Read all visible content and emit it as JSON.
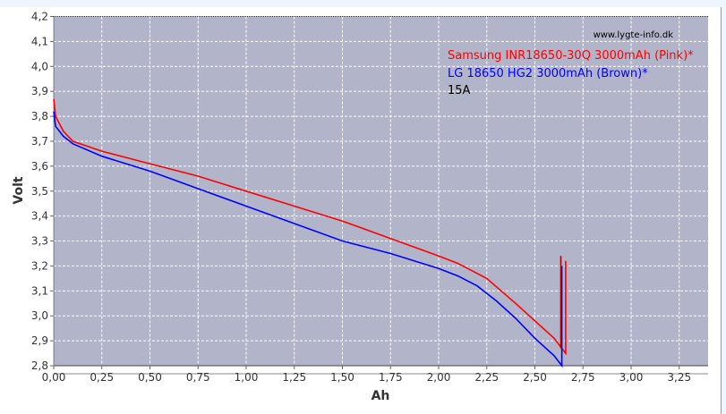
{
  "chart_data": {
    "type": "line",
    "title": "",
    "xlabel": "Ah",
    "ylabel": "Volt",
    "xlim": [
      0,
      3.4
    ],
    "ylim": [
      2.8,
      4.2
    ],
    "grid": true,
    "background": "#b2b4c9",
    "xticks": [
      "0,00",
      "0,25",
      "0,50",
      "0,75",
      "1,00",
      "1,25",
      "1,50",
      "1,75",
      "2,00",
      "2,25",
      "2,50",
      "2,75",
      "3,00",
      "3,25"
    ],
    "yticks": [
      "2,8",
      "2,9",
      "3,0",
      "3,1",
      "3,2",
      "3,3",
      "3,4",
      "3,5",
      "3,6",
      "3,7",
      "3,8",
      "3,9",
      "4,0",
      "4,1",
      "4,2"
    ],
    "watermark": "www.lygte-info.dk",
    "annotation": "15A",
    "legend_placement": "top-right",
    "series": [
      {
        "name": "Samsung INR18650-30Q 3000mAh (Pink)*",
        "color": "#ff0000",
        "points": [
          [
            0,
            3.87
          ],
          [
            0.01,
            3.8
          ],
          [
            0.05,
            3.74
          ],
          [
            0.1,
            3.7
          ],
          [
            0.25,
            3.66
          ],
          [
            0.5,
            3.61
          ],
          [
            0.75,
            3.56
          ],
          [
            1.0,
            3.5
          ],
          [
            1.25,
            3.44
          ],
          [
            1.5,
            3.38
          ],
          [
            1.75,
            3.31
          ],
          [
            2.0,
            3.24
          ],
          [
            2.1,
            3.21
          ],
          [
            2.25,
            3.15
          ],
          [
            2.4,
            3.05
          ],
          [
            2.5,
            2.98
          ],
          [
            2.6,
            2.91
          ],
          [
            2.66,
            2.85
          ],
          [
            2.66,
            3.22
          ]
        ]
      },
      {
        "name": "LG 18650 HG2 3000mAh (Brown)*",
        "color": "#0000ff",
        "points": [
          [
            0,
            3.82
          ],
          [
            0.01,
            3.76
          ],
          [
            0.05,
            3.72
          ],
          [
            0.1,
            3.69
          ],
          [
            0.25,
            3.64
          ],
          [
            0.5,
            3.58
          ],
          [
            0.75,
            3.51
          ],
          [
            1.0,
            3.44
          ],
          [
            1.25,
            3.37
          ],
          [
            1.5,
            3.3
          ],
          [
            1.75,
            3.25
          ],
          [
            2.0,
            3.19
          ],
          [
            2.1,
            3.16
          ],
          [
            2.2,
            3.12
          ],
          [
            2.3,
            3.06
          ],
          [
            2.4,
            2.99
          ],
          [
            2.5,
            2.91
          ],
          [
            2.6,
            2.84
          ],
          [
            2.64,
            2.8
          ],
          [
            2.64,
            3.2
          ]
        ]
      },
      {
        "color": "#aa0000",
        "points": [
          [
            2.635,
            2.87
          ],
          [
            2.635,
            3.24
          ]
        ]
      }
    ]
  }
}
